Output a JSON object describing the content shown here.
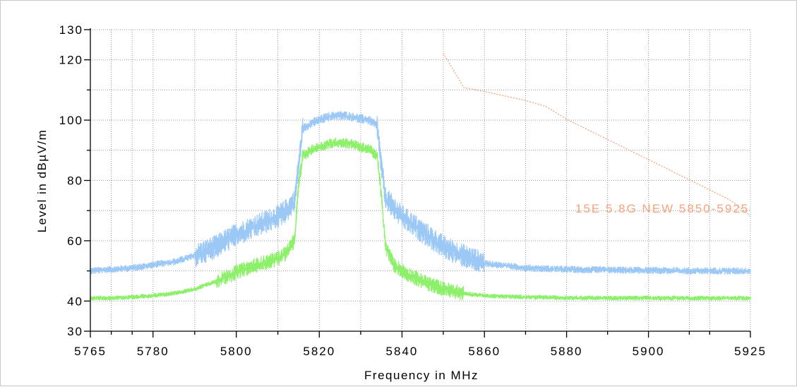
{
  "chart_data": {
    "type": "line",
    "xlabel": "Frequency in MHz",
    "ylabel": "Level in dBµV/m",
    "xlim": [
      5765,
      5925
    ],
    "ylim": [
      30,
      130
    ],
    "x_ticks": [
      5765,
      5780,
      5800,
      5820,
      5840,
      5860,
      5880,
      5900,
      5925
    ],
    "y_ticks": [
      30,
      40,
      60,
      80,
      100,
      120,
      130
    ],
    "y_minor_ticks": [
      50,
      70,
      90,
      110
    ],
    "grid": true,
    "colors": {
      "peak_trace": "#9cc8f6",
      "average_trace": "#8cf06a",
      "limit_line": "#f5a47c",
      "grid": "#9a9a9a"
    },
    "series": [
      {
        "role": "peak",
        "x": [
          5765,
          5770,
          5775,
          5780,
          5785,
          5790,
          5795,
          5800,
          5805,
          5810,
          5812,
          5814,
          5815,
          5816,
          5818,
          5820,
          5822,
          5824,
          5826,
          5828,
          5830,
          5832,
          5834,
          5835,
          5836,
          5838,
          5840,
          5845,
          5850,
          5855,
          5860,
          5870,
          5880,
          5890,
          5900,
          5910,
          5925
        ],
        "values": [
          50,
          50.5,
          51,
          52,
          53,
          55,
          58,
          62,
          65,
          68,
          70,
          73,
          85,
          97,
          99,
          100,
          101,
          101.5,
          101.5,
          101,
          100.5,
          100,
          98,
          85,
          74,
          71,
          68,
          63,
          58,
          55,
          52.5,
          51,
          50.5,
          50.3,
          50.2,
          50,
          50
        ]
      },
      {
        "role": "average",
        "x": [
          5765,
          5770,
          5775,
          5780,
          5785,
          5790,
          5795,
          5800,
          5805,
          5810,
          5812,
          5814,
          5815,
          5816,
          5818,
          5820,
          5822,
          5824,
          5826,
          5828,
          5830,
          5832,
          5834,
          5835,
          5836,
          5838,
          5840,
          5845,
          5850,
          5855,
          5860,
          5870,
          5880,
          5890,
          5900,
          5910,
          5925
        ],
        "values": [
          41,
          41,
          41.3,
          41.8,
          42.5,
          44,
          46.5,
          49.5,
          52,
          54,
          56,
          60,
          78,
          88,
          90,
          91,
          92,
          92.5,
          92.5,
          92,
          91,
          90.5,
          88,
          75,
          58,
          52,
          50,
          46.5,
          44,
          42.5,
          41.8,
          41.3,
          41.1,
          41,
          41,
          41,
          41
        ]
      },
      {
        "role": "limit",
        "name": "15E 5.8G NEW 5850-5925",
        "x": [
          5850,
          5855,
          5860,
          5870,
          5875,
          5880,
          5890,
          5900,
          5910,
          5920,
          5925
        ],
        "values": [
          122.2,
          110.8,
          109.5,
          106.5,
          104.5,
          100.3,
          93.6,
          86.9,
          80.2,
          73.5,
          68.3
        ]
      }
    ]
  }
}
